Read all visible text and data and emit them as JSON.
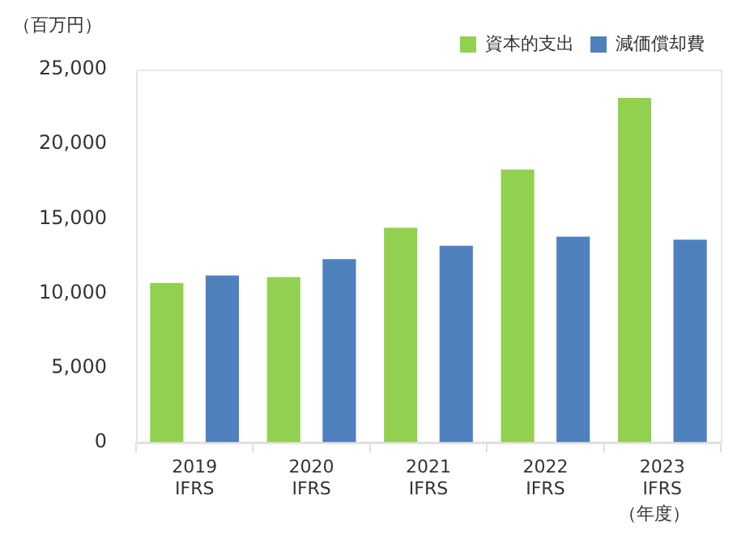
{
  "chart_data": {
    "type": "bar",
    "ylabel": "（百万円）",
    "xlabel": "（年度）",
    "categories": [
      "2019\nIFRS",
      "2020\nIFRS",
      "2021\nIFRS",
      "2022\nIFRS",
      "2023\nIFRS"
    ],
    "series": [
      {
        "name": "資本的支出",
        "color": "#92d050",
        "values": [
          10700,
          11100,
          14400,
          18300,
          23100
        ]
      },
      {
        "name": "減価償却費",
        "color": "#4f81bd",
        "values": [
          11200,
          12300,
          13200,
          13800,
          13600
        ]
      }
    ],
    "ylim": [
      0,
      25000
    ],
    "yticks": [
      {
        "value": 0,
        "label": "0"
      },
      {
        "value": 5000,
        "label": "5,000"
      },
      {
        "value": 10000,
        "label": "10,000"
      },
      {
        "value": 15000,
        "label": "15,000"
      },
      {
        "value": 20000,
        "label": "20,000"
      },
      {
        "value": 25000,
        "label": "25,000"
      }
    ],
    "grid": false,
    "legend": "top right"
  }
}
